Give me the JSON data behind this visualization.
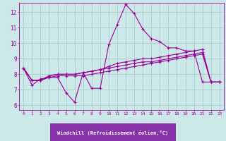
{
  "xlabel": "Windchill (Refroidissement éolien,°C)",
  "background_color": "#cce8e8",
  "grid_color": "#aacccc",
  "line_color": "#990099",
  "xlabel_bg": "#9933aa",
  "xlim": [
    -0.5,
    23.5
  ],
  "ylim": [
    5.7,
    12.6
  ],
  "xticks": [
    0,
    1,
    2,
    3,
    4,
    5,
    6,
    7,
    8,
    9,
    10,
    11,
    12,
    13,
    14,
    15,
    16,
    17,
    18,
    19,
    20,
    21,
    22,
    23
  ],
  "yticks": [
    6,
    7,
    8,
    9,
    10,
    11,
    12
  ],
  "series1_x": [
    0,
    1,
    2,
    3,
    4,
    5,
    6,
    7,
    8,
    9,
    10,
    11,
    12,
    13,
    14,
    15,
    16,
    17,
    18,
    19,
    20,
    21,
    22,
    23
  ],
  "series1_y": [
    8.4,
    7.3,
    7.7,
    7.8,
    7.8,
    6.8,
    6.2,
    8.1,
    7.1,
    7.1,
    9.9,
    11.2,
    12.5,
    11.9,
    10.9,
    10.3,
    10.1,
    9.7,
    9.7,
    9.5,
    9.5,
    7.5,
    7.5,
    7.5
  ],
  "series2_x": [
    0,
    1,
    2,
    3,
    4,
    5,
    6,
    7,
    8,
    9,
    10,
    11,
    12,
    13,
    14,
    15,
    16,
    17,
    18,
    19,
    20,
    21,
    22,
    23
  ],
  "series2_y": [
    8.4,
    7.6,
    7.6,
    7.8,
    7.9,
    7.9,
    7.9,
    7.9,
    8.0,
    8.1,
    8.2,
    8.3,
    8.4,
    8.5,
    8.6,
    8.7,
    8.8,
    8.9,
    9.0,
    9.1,
    9.2,
    9.3,
    7.5,
    7.5
  ],
  "series3_x": [
    0,
    1,
    2,
    3,
    4,
    5,
    6,
    7,
    8,
    9,
    10,
    11,
    12,
    13,
    14,
    15,
    16,
    17,
    18,
    19,
    20,
    21,
    22,
    23
  ],
  "series3_y": [
    8.4,
    7.6,
    7.6,
    7.9,
    8.0,
    8.0,
    8.0,
    8.1,
    8.2,
    8.3,
    8.4,
    8.5,
    8.6,
    8.7,
    8.8,
    8.8,
    8.9,
    9.0,
    9.1,
    9.2,
    9.3,
    9.4,
    7.5,
    7.5
  ],
  "series4_x": [
    0,
    1,
    2,
    3,
    4,
    5,
    6,
    7,
    8,
    9,
    10,
    11,
    12,
    13,
    14,
    15,
    16,
    17,
    18,
    19,
    20,
    21,
    22,
    23
  ],
  "series4_y": [
    8.4,
    7.6,
    7.6,
    7.9,
    8.0,
    8.0,
    8.0,
    8.1,
    8.2,
    8.3,
    8.5,
    8.7,
    8.8,
    8.9,
    9.0,
    9.0,
    9.1,
    9.2,
    9.3,
    9.4,
    9.5,
    9.6,
    7.5,
    7.5
  ]
}
